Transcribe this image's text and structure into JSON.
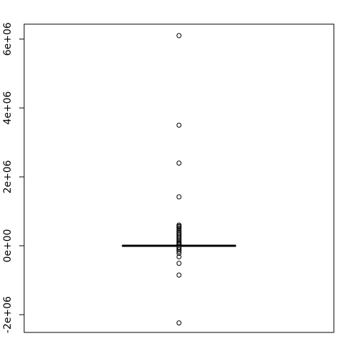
{
  "chart_data": {
    "type": "box",
    "title": "",
    "xlabel": "",
    "ylabel": "",
    "ylim": [
      -2500000,
      6500000
    ],
    "y_ticks": [
      -2000000,
      0,
      2000000,
      4000000,
      6000000
    ],
    "y_tick_labels": [
      "-2e+06",
      "0e+00",
      "2e+06",
      "4e+06",
      "6e+06"
    ],
    "grid": false,
    "box": {
      "lower_whisker": -20000,
      "q1": -4000,
      "median": 0,
      "q3": 4000,
      "upper_whisker": 20000
    },
    "outliers": [
      6100000,
      3500000,
      2400000,
      1420000,
      600000,
      570000,
      540000,
      500000,
      450000,
      400000,
      360000,
      320000,
      280000,
      240000,
      200000,
      160000,
      120000,
      90000,
      60000,
      40000,
      -40000,
      -70000,
      -110000,
      -160000,
      -220000,
      -320000,
      -510000,
      -850000,
      -2240000
    ]
  }
}
